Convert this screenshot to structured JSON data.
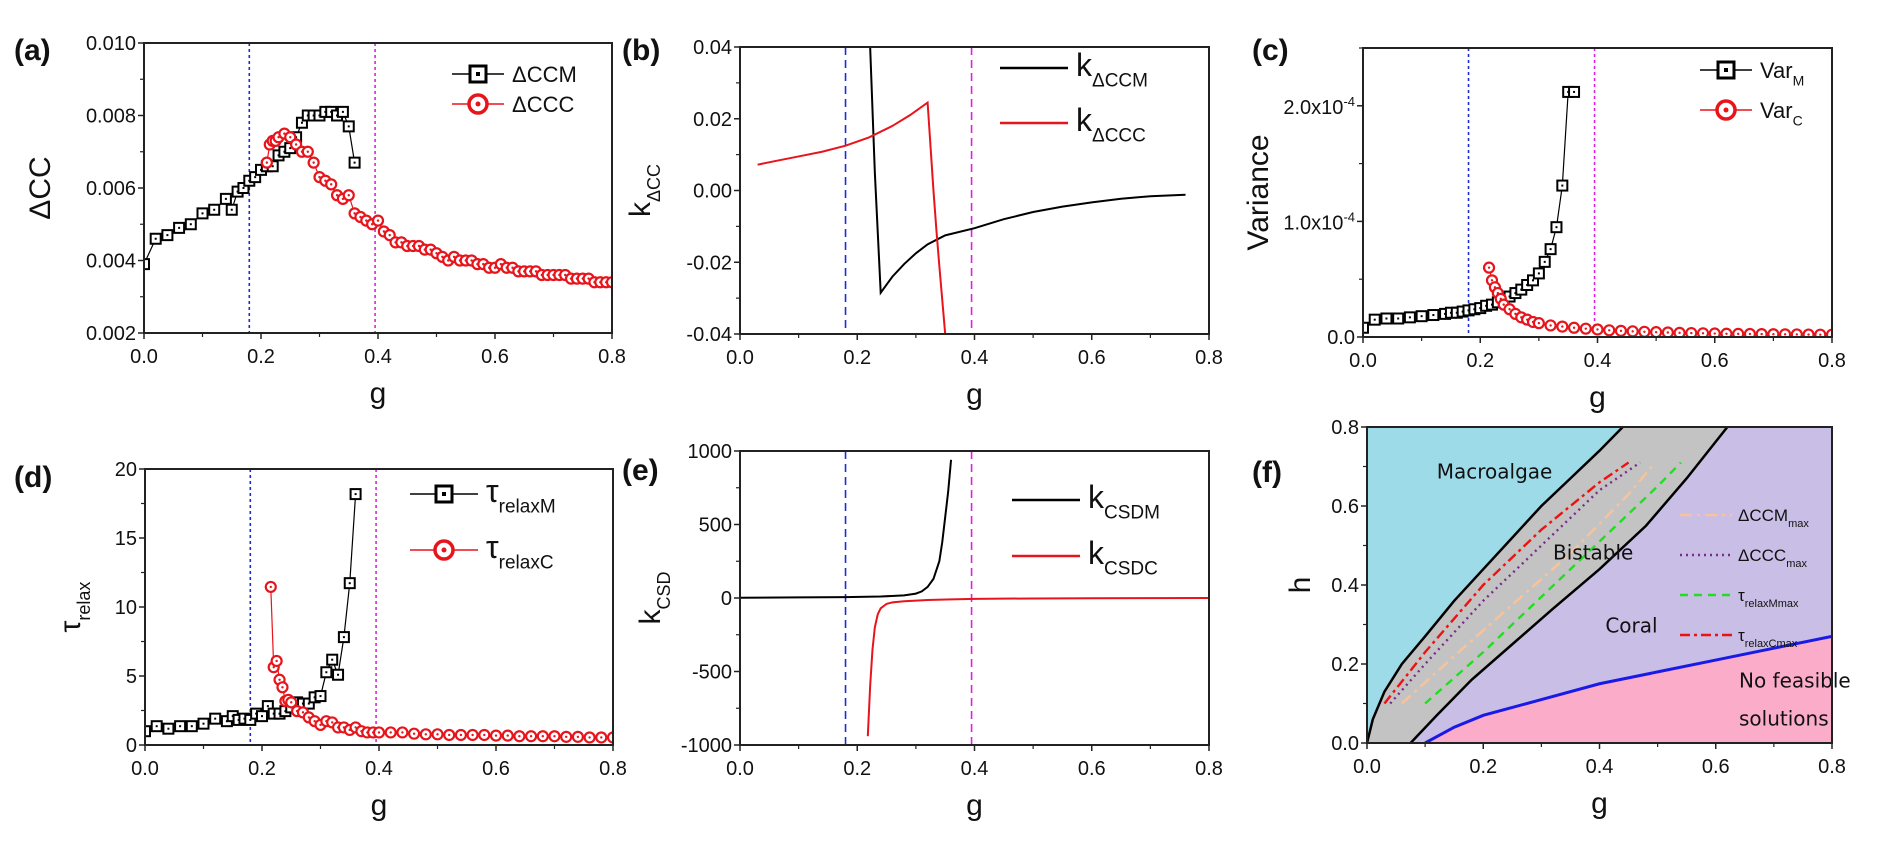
{
  "figure": {
    "reference_lines": {
      "blue_g": 0.18,
      "magenta_g": 0.395,
      "blue_color": "#1f2bd6",
      "magenta_color": "#e020e0"
    }
  },
  "chart_data": [
    {
      "id": "a",
      "panel_label": "(a)",
      "type": "line",
      "xlabel": "g",
      "ylabel": "ΔCC",
      "xlim": [
        0.0,
        0.8
      ],
      "ylim": [
        0.002,
        0.01
      ],
      "xticks": [
        "0.0",
        "0.2",
        "0.4",
        "0.6",
        "0.8"
      ],
      "yticks": [
        "0.002",
        "0.004",
        "0.006",
        "0.008",
        "0.010"
      ],
      "legend_position": "top-right",
      "series": [
        {
          "name": "ΔCCM",
          "color": "#000000",
          "marker": "square",
          "x": [
            0.0,
            0.02,
            0.04,
            0.06,
            0.08,
            0.1,
            0.12,
            0.14,
            0.15,
            0.16,
            0.17,
            0.18,
            0.19,
            0.2,
            0.21,
            0.22,
            0.23,
            0.24,
            0.25,
            0.26,
            0.27,
            0.28,
            0.29,
            0.3,
            0.31,
            0.32,
            0.33,
            0.34,
            0.35,
            0.36
          ],
          "y": [
            0.0039,
            0.0046,
            0.0047,
            0.0049,
            0.005,
            0.0053,
            0.0054,
            0.0057,
            0.0054,
            0.0059,
            0.006,
            0.0062,
            0.0063,
            0.0065,
            0.0066,
            0.0066,
            0.0069,
            0.007,
            0.0071,
            0.0074,
            0.0078,
            0.008,
            0.008,
            0.008,
            0.0081,
            0.0081,
            0.008,
            0.0081,
            0.0077,
            0.0067
          ]
        },
        {
          "name": "ΔCCC",
          "color": "#e8141b",
          "marker": "circle",
          "x": [
            0.21,
            0.215,
            0.22,
            0.225,
            0.23,
            0.24,
            0.25,
            0.26,
            0.27,
            0.28,
            0.29,
            0.3,
            0.31,
            0.32,
            0.33,
            0.34,
            0.35,
            0.36,
            0.37,
            0.38,
            0.39,
            0.4,
            0.41,
            0.42,
            0.43,
            0.44,
            0.45,
            0.46,
            0.47,
            0.48,
            0.49,
            0.5,
            0.51,
            0.52,
            0.53,
            0.54,
            0.55,
            0.56,
            0.57,
            0.58,
            0.59,
            0.6,
            0.61,
            0.62,
            0.63,
            0.64,
            0.65,
            0.66,
            0.67,
            0.68,
            0.69,
            0.7,
            0.71,
            0.72,
            0.73,
            0.74,
            0.75,
            0.76,
            0.77,
            0.78,
            0.79,
            0.8
          ],
          "y": [
            0.0067,
            0.0072,
            0.0073,
            0.0073,
            0.0074,
            0.0075,
            0.0074,
            0.0072,
            0.007,
            0.007,
            0.0067,
            0.0063,
            0.0062,
            0.0061,
            0.0058,
            0.0057,
            0.0058,
            0.0053,
            0.0052,
            0.0051,
            0.005,
            0.0051,
            0.0048,
            0.0047,
            0.0045,
            0.0045,
            0.0044,
            0.0044,
            0.0044,
            0.0043,
            0.0043,
            0.0042,
            0.0041,
            0.004,
            0.0041,
            0.004,
            0.004,
            0.004,
            0.0039,
            0.0039,
            0.0038,
            0.0038,
            0.0039,
            0.0038,
            0.0038,
            0.0037,
            0.0037,
            0.0037,
            0.0037,
            0.0036,
            0.0036,
            0.0036,
            0.0036,
            0.0036,
            0.0035,
            0.0035,
            0.0035,
            0.0035,
            0.0034,
            0.0034,
            0.0034,
            0.0034
          ]
        }
      ]
    },
    {
      "id": "b",
      "panel_label": "(b)",
      "type": "line",
      "xlabel": "g",
      "ylabel": "k",
      "ylabel_sub": "ΔCC",
      "xlim": [
        0.0,
        0.8
      ],
      "ylim": [
        -0.04,
        0.04
      ],
      "xticks": [
        "0.0",
        "0.2",
        "0.4",
        "0.6",
        "0.8"
      ],
      "yticks": [
        "-0.04",
        "-0.02",
        "0.00",
        "0.02",
        "0.04"
      ],
      "legend_position": "top-right",
      "series": [
        {
          "name": "k",
          "name_sub": "ΔCCM",
          "color": "#000000",
          "x": [
            0.222,
            0.23,
            0.24,
            0.26,
            0.28,
            0.3,
            0.32,
            0.35,
            0.4,
            0.45,
            0.5,
            0.55,
            0.6,
            0.65,
            0.7,
            0.76
          ],
          "y": [
            0.04,
            0.005,
            -0.0285,
            -0.024,
            -0.0205,
            -0.0175,
            -0.015,
            -0.0125,
            -0.0105,
            -0.008,
            -0.006,
            -0.0045,
            -0.0033,
            -0.0023,
            -0.0016,
            -0.0012
          ]
        },
        {
          "name": "k",
          "name_sub": "ΔCCC",
          "color": "#e8141b",
          "x": [
            0.03,
            0.06,
            0.1,
            0.14,
            0.18,
            0.22,
            0.26,
            0.29,
            0.32,
            0.33,
            0.335,
            0.34,
            0.35
          ],
          "y": [
            0.0072,
            0.0082,
            0.0095,
            0.0108,
            0.0125,
            0.0148,
            0.018,
            0.021,
            0.0245,
            0.0,
            -0.011,
            -0.021,
            -0.04
          ]
        }
      ]
    },
    {
      "id": "c",
      "panel_label": "(c)",
      "type": "line",
      "xlabel": "g",
      "ylabel": "Variance",
      "xlim": [
        0.0,
        0.8
      ],
      "ylim": [
        0.0,
        0.00025
      ],
      "xticks": [
        "0.0",
        "0.2",
        "0.4",
        "0.6",
        "0.8"
      ],
      "yticks": [
        {
          "v": 0.0,
          "text": "0.0"
        },
        {
          "v": 0.0001,
          "text": "1.0x10",
          "exp": "-4"
        },
        {
          "v": 0.0002,
          "text": "2.0x10",
          "exp": "-4"
        }
      ],
      "legend_position": "top-right",
      "series": [
        {
          "name": "Var",
          "name_sub": "M",
          "color": "#000000",
          "marker": "square",
          "x": [
            0.0,
            0.02,
            0.04,
            0.06,
            0.08,
            0.1,
            0.12,
            0.14,
            0.15,
            0.16,
            0.17,
            0.18,
            0.19,
            0.2,
            0.21,
            0.22,
            0.23,
            0.24,
            0.25,
            0.26,
            0.27,
            0.28,
            0.29,
            0.3,
            0.31,
            0.32,
            0.33,
            0.34,
            0.35,
            0.36
          ],
          "y": [
            8e-06,
            1.5e-05,
            1.6e-05,
            1.6e-05,
            1.7e-05,
            1.8e-05,
            1.9e-05,
            2e-05,
            2.1e-05,
            2.1e-05,
            2.2e-05,
            2.3e-05,
            2.4e-05,
            2.5e-05,
            2.7e-05,
            2.8e-05,
            3e-05,
            3.3e-05,
            3.5e-05,
            3.8e-05,
            4.1e-05,
            4.5e-05,
            4.9e-05,
            5.5e-05,
            6.5e-05,
            7.6e-05,
            9.5e-05,
            0.000131,
            0.000212,
            0.000212
          ]
        },
        {
          "name": "Var",
          "name_sub": "C",
          "color": "#e8141b",
          "marker": "circle",
          "x": [
            0.215,
            0.22,
            0.225,
            0.23,
            0.235,
            0.24,
            0.25,
            0.26,
            0.27,
            0.28,
            0.29,
            0.3,
            0.32,
            0.34,
            0.36,
            0.38,
            0.4,
            0.42,
            0.44,
            0.46,
            0.48,
            0.5,
            0.52,
            0.54,
            0.56,
            0.58,
            0.6,
            0.62,
            0.64,
            0.66,
            0.68,
            0.7,
            0.72,
            0.74,
            0.76,
            0.78,
            0.8
          ],
          "y": [
            6e-05,
            4.9e-05,
            4.3e-05,
            3.8e-05,
            3.3e-05,
            2.8e-05,
            2.4e-05,
            2e-05,
            1.7e-05,
            1.5e-05,
            1.3e-05,
            1.2e-05,
            1e-05,
            9e-06,
            8e-06,
            7.2e-06,
            6.5e-06,
            5.8e-06,
            5.3e-06,
            4.9e-06,
            4.5e-06,
            4.2e-06,
            3.9e-06,
            3.6e-06,
            3.4e-06,
            3.2e-06,
            3e-06,
            2.8e-06,
            2.7e-06,
            2.6e-06,
            2.5e-06,
            2.4e-06,
            2.3e-06,
            2.2e-06,
            2.1e-06,
            2e-06,
            2e-06
          ]
        }
      ]
    },
    {
      "id": "d",
      "panel_label": "(d)",
      "type": "line",
      "xlabel": "g",
      "ylabel": "τ",
      "ylabel_sub": "relax",
      "xlim": [
        0.0,
        0.8
      ],
      "ylim": [
        0,
        22
      ],
      "xticks": [
        "0.0",
        "0.2",
        "0.4",
        "0.6",
        "0.8"
      ],
      "yticks": [
        "0",
        "5",
        "10",
        "15",
        "20"
      ],
      "legend_position": "top-right",
      "series": [
        {
          "name": "τ",
          "name_sub": "relaxM",
          "color": "#000000",
          "marker": "square",
          "x": [
            0.0,
            0.02,
            0.04,
            0.06,
            0.08,
            0.1,
            0.12,
            0.14,
            0.15,
            0.16,
            0.17,
            0.18,
            0.19,
            0.2,
            0.21,
            0.22,
            0.23,
            0.24,
            0.25,
            0.26,
            0.27,
            0.28,
            0.29,
            0.3,
            0.31,
            0.32,
            0.33,
            0.34,
            0.35,
            0.36
          ],
          "y": [
            1.1,
            1.5,
            1.3,
            1.5,
            1.5,
            1.7,
            2.1,
            1.9,
            2.3,
            2.0,
            2.1,
            2.0,
            2.5,
            2.3,
            3.1,
            2.5,
            2.5,
            2.7,
            3.0,
            3.4,
            3.3,
            3.3,
            3.8,
            3.9,
            5.8,
            6.8,
            5.6,
            8.6,
            12.9,
            20.0
          ]
        },
        {
          "name": "τ",
          "name_sub": "relaxC",
          "color": "#e8141b",
          "marker": "circle",
          "x": [
            0.215,
            0.22,
            0.225,
            0.23,
            0.235,
            0.24,
            0.245,
            0.25,
            0.26,
            0.27,
            0.28,
            0.29,
            0.3,
            0.31,
            0.32,
            0.33,
            0.34,
            0.35,
            0.36,
            0.37,
            0.38,
            0.39,
            0.4,
            0.42,
            0.44,
            0.46,
            0.48,
            0.5,
            0.52,
            0.54,
            0.56,
            0.58,
            0.6,
            0.62,
            0.64,
            0.66,
            0.68,
            0.7,
            0.72,
            0.74,
            0.76,
            0.78,
            0.8
          ],
          "y": [
            12.6,
            6.2,
            6.7,
            5.2,
            4.6,
            3.5,
            3.6,
            3.4,
            2.7,
            2.6,
            2.2,
            1.9,
            1.6,
            1.9,
            1.8,
            1.4,
            1.4,
            1.2,
            1.4,
            1.1,
            1.0,
            1.0,
            1.0,
            1.0,
            1.0,
            0.9,
            0.85,
            0.85,
            0.8,
            0.8,
            0.8,
            0.8,
            0.75,
            0.75,
            0.7,
            0.7,
            0.7,
            0.7,
            0.65,
            0.65,
            0.6,
            0.6,
            0.6
          ]
        }
      ]
    },
    {
      "id": "e",
      "panel_label": "(e)",
      "type": "line",
      "xlabel": "g",
      "ylabel": "k",
      "ylabel_sub": "CSD",
      "xlim": [
        0.0,
        0.8
      ],
      "ylim": [
        -1000,
        1000
      ],
      "xticks": [
        "0.0",
        "0.2",
        "0.4",
        "0.6",
        "0.8"
      ],
      "yticks": [
        "-1000",
        "-500",
        "0",
        "500",
        "1000"
      ],
      "legend_position": "top-right",
      "series": [
        {
          "name": "k",
          "name_sub": "CSDM",
          "color": "#000000",
          "x": [
            0.0,
            0.1,
            0.18,
            0.24,
            0.28,
            0.3,
            0.31,
            0.32,
            0.33,
            0.34,
            0.345,
            0.35,
            0.355,
            0.36
          ],
          "y": [
            2,
            4,
            6,
            10,
            18,
            30,
            45,
            75,
            130,
            250,
            380,
            550,
            720,
            940
          ]
        },
        {
          "name": "k",
          "name_sub": "CSDC",
          "color": "#e8141b",
          "x": [
            0.218,
            0.222,
            0.226,
            0.23,
            0.235,
            0.24,
            0.25,
            0.26,
            0.28,
            0.32,
            0.36,
            0.4,
            0.5,
            0.6,
            0.7,
            0.8
          ],
          "y": [
            -940,
            -600,
            -350,
            -200,
            -110,
            -70,
            -40,
            -30,
            -22,
            -14,
            -9,
            -6,
            -3,
            -2,
            -1,
            0
          ]
        }
      ]
    },
    {
      "id": "f",
      "panel_label": "(f)",
      "type": "area",
      "xlabel": "g",
      "ylabel": "h",
      "xlim": [
        0.0,
        0.8
      ],
      "ylim": [
        0.0,
        0.8
      ],
      "xticks": [
        "0.0",
        "0.2",
        "0.4",
        "0.6",
        "0.8"
      ],
      "yticks": [
        "0.0",
        "0.2",
        "0.4",
        "0.6",
        "0.8"
      ],
      "legend_position": "right",
      "regions": [
        {
          "name": "Macroalgae",
          "color": "#9edbe9",
          "label_at": [
            0.12,
            0.67
          ]
        },
        {
          "name": "Bistable",
          "color": "#c3c3c3",
          "label_at": [
            0.32,
            0.465
          ]
        },
        {
          "name": "Coral",
          "color": "#c9bfe6",
          "label_at": [
            0.41,
            0.28
          ]
        },
        {
          "name": "No feasible",
          "name_line2": "solutions",
          "color": "#fbacc8",
          "label_at": [
            0.64,
            0.14
          ]
        }
      ],
      "boundaries": {
        "upper_bistable": {
          "x": [
            0.0,
            0.01,
            0.03,
            0.06,
            0.1,
            0.15,
            0.2,
            0.25,
            0.3,
            0.35,
            0.4,
            0.44
          ],
          "y": [
            0.0,
            0.06,
            0.13,
            0.2,
            0.27,
            0.36,
            0.44,
            0.52,
            0.6,
            0.67,
            0.74,
            0.8
          ]
        },
        "lower_bistable": {
          "x": [
            0.075,
            0.12,
            0.18,
            0.25,
            0.32,
            0.4,
            0.48,
            0.55,
            0.62
          ],
          "y": [
            0.0,
            0.07,
            0.16,
            0.25,
            0.34,
            0.44,
            0.55,
            0.67,
            0.8
          ]
        },
        "feasibility": {
          "x": [
            0.1,
            0.15,
            0.2,
            0.25,
            0.3,
            0.4,
            0.5,
            0.6,
            0.7,
            0.8
          ],
          "y": [
            0.0,
            0.04,
            0.07,
            0.09,
            0.11,
            0.15,
            0.18,
            0.21,
            0.24,
            0.27
          ],
          "color": "#1a1ae6"
        }
      },
      "series": [
        {
          "name": "ΔCCM",
          "name_sub": "max",
          "color": "#f9c39a",
          "dash": "dashdot",
          "x": [
            0.06,
            0.15,
            0.25,
            0.35,
            0.45,
            0.49
          ],
          "y": [
            0.1,
            0.22,
            0.35,
            0.48,
            0.63,
            0.7
          ]
        },
        {
          "name": "ΔCCC",
          "name_sub": "max",
          "color": "#7a2a8c",
          "dash": "dot",
          "x": [
            0.04,
            0.1,
            0.2,
            0.3,
            0.4,
            0.47
          ],
          "y": [
            0.1,
            0.2,
            0.36,
            0.5,
            0.64,
            0.71
          ]
        },
        {
          "name": "τ",
          "name_sub": "relaxMmax",
          "color": "#22dd22",
          "dash": "dash",
          "x": [
            0.1,
            0.2,
            0.3,
            0.4,
            0.5,
            0.54
          ],
          "y": [
            0.1,
            0.23,
            0.37,
            0.51,
            0.65,
            0.71
          ]
        },
        {
          "name": "τ",
          "name_sub": "relaxCmax",
          "color": "#ee1111",
          "dash": "dashdot-heavy",
          "x": [
            0.03,
            0.1,
            0.2,
            0.3,
            0.4,
            0.45
          ],
          "y": [
            0.1,
            0.23,
            0.4,
            0.54,
            0.66,
            0.71
          ]
        }
      ]
    }
  ]
}
